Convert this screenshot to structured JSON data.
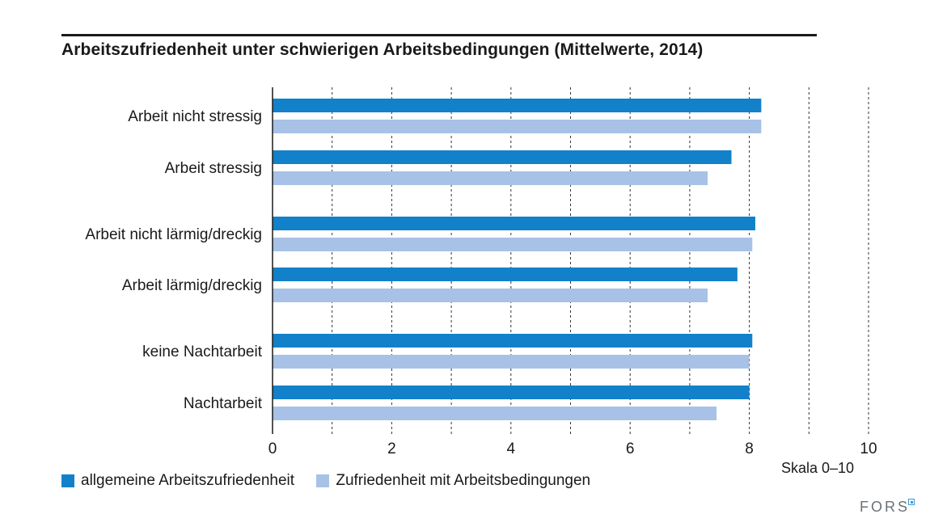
{
  "title": "Arbeitszufriedenheit unter schwierigen Arbeitsbedingungen (Mittelwerte, 2014)",
  "scale_note": "Skala 0–10",
  "logo_text": "FORS",
  "colors": {
    "series1": "#1281c9",
    "series2": "#a7c2e6",
    "axis": "#1a1a1a",
    "grid": "#333333"
  },
  "chart_data": {
    "type": "bar",
    "orientation": "horizontal",
    "categories": [
      "Arbeit nicht stressig",
      "Arbeit stressig",
      "Arbeit nicht lärmig/dreckig",
      "Arbeit lärmig/dreckig",
      "keine Nachtarbeit",
      "Nachtarbeit"
    ],
    "series": [
      {
        "name": "allgemeine Arbeitszufriedenheit",
        "values": [
          8.2,
          7.7,
          8.1,
          7.8,
          8.05,
          8.0
        ]
      },
      {
        "name": "Zufriedenheit mit Arbeitsbedingungen",
        "values": [
          8.2,
          7.3,
          8.05,
          7.3,
          8.0,
          7.45
        ]
      }
    ],
    "xlim": [
      0,
      10
    ],
    "xticks": [
      0,
      2,
      4,
      6,
      8,
      10
    ],
    "grid": true,
    "legend_position": "bottom-left"
  }
}
